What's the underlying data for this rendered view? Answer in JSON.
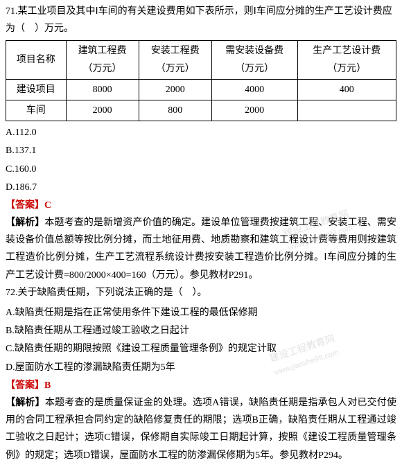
{
  "q71": {
    "text": "71.某工业项目及其中Ⅰ车间的有关建设费用如下表所示，则Ⅰ车间应分摊的生产工艺设计费应为（　）万元。",
    "table": {
      "headers": [
        "项目名称",
        "建筑工程费\n（万元）",
        "安装工程费\n（万元）",
        "需安装设备费\n（万元）",
        "生产工艺设计费\n（万元）"
      ],
      "rows": [
        [
          "建设项目",
          "8000",
          "2000",
          "4000",
          "400"
        ],
        [
          "车间",
          "2000",
          "800",
          "2000",
          ""
        ]
      ]
    },
    "options": {
      "a": "A.112.0",
      "b": "B.137.1",
      "c": "C.160.0",
      "d": "D.186.7"
    },
    "answer_label": "【答案】",
    "answer": "C",
    "analysis_label": "【解析】",
    "analysis": "本题考查的是新增资产价值的确定。建设单位管理费按建筑工程、安装工程、需安装设备价值总额等按比例分摊，而土地征用费、地质勘察和建筑工程设计费等费用则按建筑工程造价比例分摊，生产工艺流程系统设计费按安装工程造价比例分摊。Ⅰ车间应分摊的生产工艺设计费=800/2000×400=160（万元）。参见教材P291。"
  },
  "q72": {
    "text": "72.关于缺陷责任期，下列说法正确的是（　）。",
    "options": {
      "a": "A.缺陷责任期是指在正常使用条件下建设工程的最低保修期",
      "b": "B.缺陷责任期从工程通过竣工验收之日起计",
      "c": "C.缺陷责任期的期限按照《建设工程质量管理条例》的规定计取",
      "d": "D.屋面防水工程的渗漏缺陷责任期为5年"
    },
    "answer_label": "【答案】",
    "answer": "B",
    "analysis_label": "【解析】",
    "analysis": "本题考查的是质量保证金的处理。选项A错误，缺陷责任期是指承包人对已交付使用的合同工程承担合同约定的缺陷修复责任的期限；选项B正确，缺陷责任期从工程通过竣工验收之日起计；选项C错误，保修期自实际竣工日期起计算，按照《建设工程质量管理条例》的规定；选项D错误，屋面防水工程的防渗漏保修期为5年。参见教材P294。"
  },
  "watermark": {
    "line1": "建设工程教育网",
    "line2": "www.jianshe99.com"
  }
}
